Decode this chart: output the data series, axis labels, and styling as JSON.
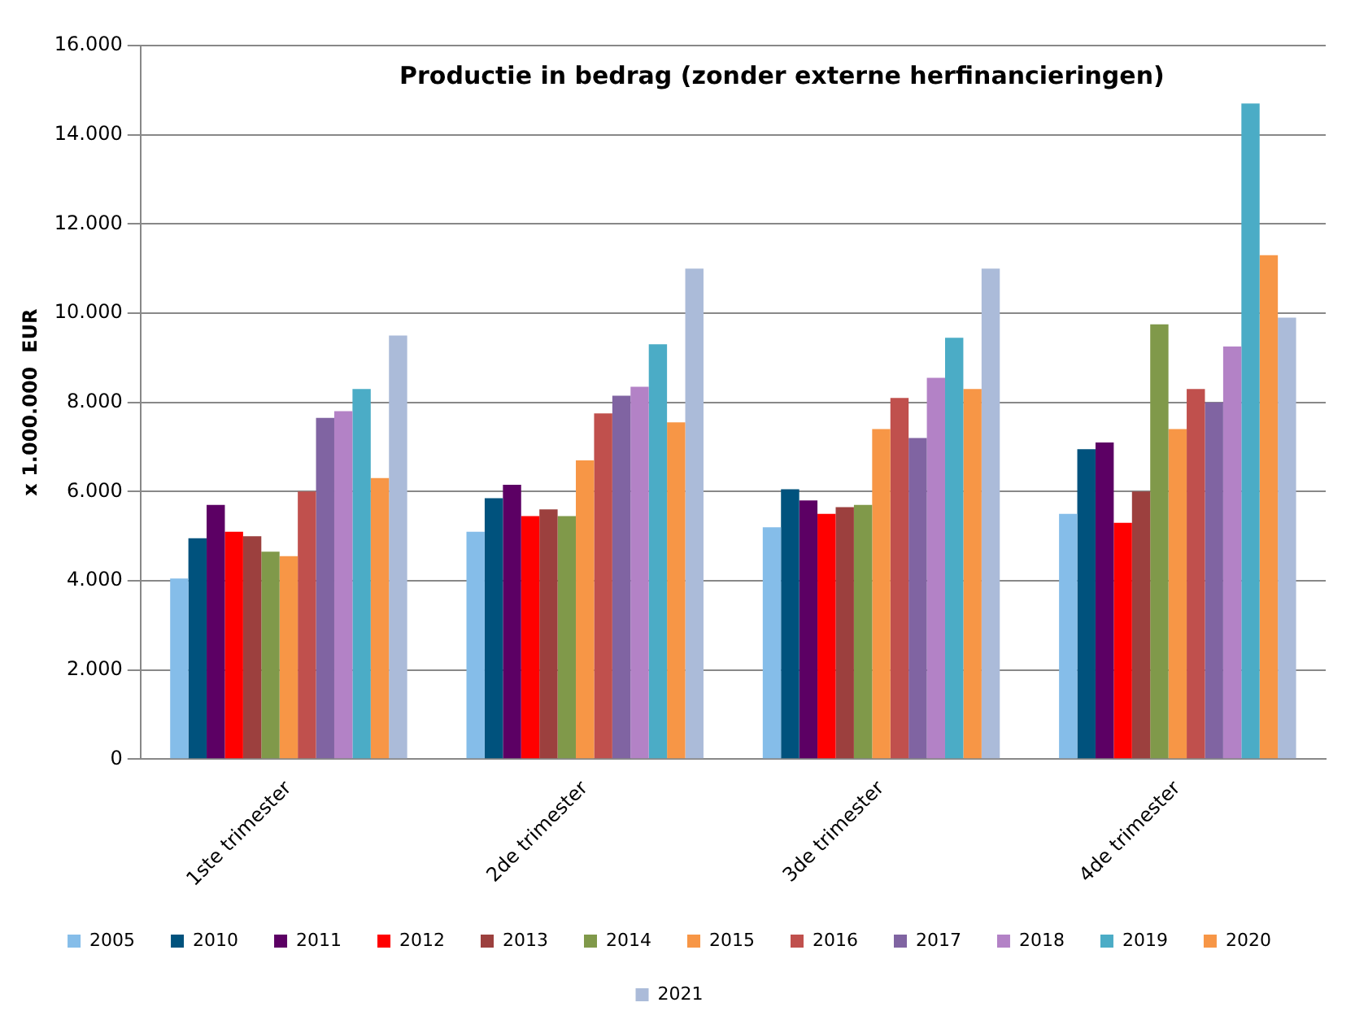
{
  "chart_data": {
    "type": "bar",
    "title": "Productie in bedrag (zonder externe herfinancieringen)",
    "ylabel": "x 1.000.000  EUR",
    "categories": [
      "1ste trimester",
      "2de trimester",
      "3de trimester",
      "4de trimester"
    ],
    "series": [
      {
        "name": "2005",
        "color": "#85bde9",
        "values": [
          4050,
          5100,
          5200,
          5500
        ]
      },
      {
        "name": "2010",
        "color": "#00527d",
        "values": [
          4950,
          5850,
          6050,
          6950
        ]
      },
      {
        "name": "2011",
        "color": "#5c0064",
        "values": [
          5700,
          6150,
          5800,
          7100
        ]
      },
      {
        "name": "2012",
        "color": "#ff0000",
        "values": [
          5100,
          5450,
          5500,
          5300
        ]
      },
      {
        "name": "2013",
        "color": "#9c403e",
        "values": [
          5000,
          5600,
          5650,
          6000
        ]
      },
      {
        "name": "2014",
        "color": "#80994a",
        "values": [
          4650,
          5450,
          5700,
          9750
        ]
      },
      {
        "name": "2015",
        "color": "#f79646",
        "values": [
          4550,
          6700,
          7400,
          7400
        ]
      },
      {
        "name": "2016",
        "color": "#c0504d",
        "values": [
          6000,
          7750,
          8100,
          8300
        ]
      },
      {
        "name": "2017",
        "color": "#8064a2",
        "values": [
          7650,
          8150,
          7200,
          8000
        ]
      },
      {
        "name": "2018",
        "color": "#b382c6",
        "values": [
          7800,
          8350,
          8550,
          9250
        ]
      },
      {
        "name": "2019",
        "color": "#4bacc6",
        "values": [
          8300,
          9300,
          9450,
          14700
        ]
      },
      {
        "name": "2020",
        "color": "#f79646",
        "values": [
          6300,
          7550,
          8300,
          11300
        ]
      },
      {
        "name": "2021",
        "color": "#abbbd9",
        "values": [
          9500,
          11000,
          11000,
          9900
        ]
      }
    ],
    "ylim": [
      0,
      16000
    ],
    "yticks": [
      {
        "value": 0,
        "label": "0"
      },
      {
        "value": 2000,
        "label": "2.000"
      },
      {
        "value": 4000,
        "label": "4.000"
      },
      {
        "value": 6000,
        "label": "6.000"
      },
      {
        "value": 8000,
        "label": "8.000"
      },
      {
        "value": 10000,
        "label": "10.000"
      },
      {
        "value": 12000,
        "label": "12.000"
      },
      {
        "value": 14000,
        "label": "14.000"
      },
      {
        "value": 16000,
        "label": "16.000"
      }
    ],
    "grid": "y",
    "legend": "bottom"
  }
}
